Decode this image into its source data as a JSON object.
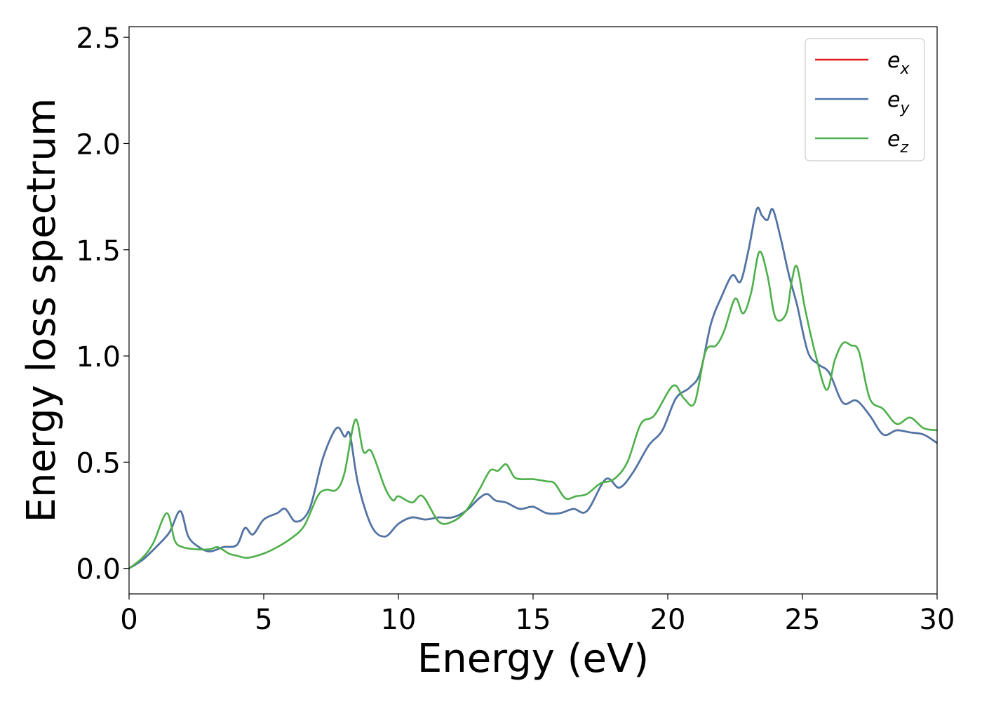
{
  "chart_data": {
    "type": "line",
    "title": "",
    "xlabel": "Energy (eV)",
    "ylabel": "Energy loss spectrum",
    "xlim": [
      0,
      30
    ],
    "ylim": [
      -0.12,
      2.55
    ],
    "xticks": [
      0,
      5,
      10,
      15,
      20,
      25,
      30
    ],
    "xtick_labels": [
      "0",
      "5",
      "10",
      "15",
      "20",
      "25",
      "30"
    ],
    "yticks": [
      0.0,
      0.5,
      1.0,
      1.5,
      2.0,
      2.5
    ],
    "ytick_labels": [
      "0.0",
      "0.5",
      "1.0",
      "1.5",
      "2.0",
      "2.5"
    ],
    "grid": false,
    "legend_position": "top-right",
    "series": [
      {
        "name": "e",
        "subscript": "x",
        "color": "#e41a1c",
        "x": [
          0,
          0.5,
          1.0,
          1.5,
          1.9,
          2.2,
          2.6,
          3.0,
          3.5,
          4.0,
          4.3,
          4.6,
          5.0,
          5.5,
          5.8,
          6.2,
          6.7,
          7.2,
          7.7,
          8.0,
          8.2,
          8.5,
          9.0,
          9.5,
          10.0,
          10.5,
          11.0,
          11.5,
          12.0,
          12.5,
          13.0,
          13.3,
          13.6,
          14.0,
          14.5,
          15.0,
          15.5,
          16.0,
          16.5,
          17.0,
          17.7,
          18.2,
          18.7,
          19.3,
          19.8,
          20.3,
          20.8,
          21.2,
          21.6,
          22.0,
          22.4,
          22.7,
          23.0,
          23.3,
          23.5,
          23.7,
          23.9,
          24.2,
          24.5,
          24.8,
          25.2,
          25.6,
          26.0,
          26.5,
          27.0,
          27.5,
          28.0,
          28.5,
          29.0,
          29.5,
          30.0
        ],
        "y": [
          0.0,
          0.04,
          0.1,
          0.17,
          0.27,
          0.15,
          0.1,
          0.08,
          0.1,
          0.11,
          0.19,
          0.16,
          0.23,
          0.26,
          0.28,
          0.22,
          0.28,
          0.52,
          0.66,
          0.62,
          0.63,
          0.4,
          0.2,
          0.15,
          0.21,
          0.24,
          0.23,
          0.24,
          0.24,
          0.27,
          0.33,
          0.35,
          0.32,
          0.31,
          0.28,
          0.29,
          0.26,
          0.26,
          0.28,
          0.27,
          0.42,
          0.38,
          0.45,
          0.58,
          0.65,
          0.8,
          0.85,
          0.92,
          1.15,
          1.28,
          1.38,
          1.35,
          1.5,
          1.69,
          1.66,
          1.64,
          1.69,
          1.55,
          1.38,
          1.24,
          1.02,
          0.96,
          0.92,
          0.78,
          0.79,
          0.72,
          0.63,
          0.65,
          0.64,
          0.63,
          0.59
        ]
      },
      {
        "name": "e",
        "subscript": "y",
        "color": "#4a77aa",
        "x": [
          0,
          0.5,
          1.0,
          1.5,
          1.9,
          2.2,
          2.6,
          3.0,
          3.5,
          4.0,
          4.3,
          4.6,
          5.0,
          5.5,
          5.8,
          6.2,
          6.7,
          7.2,
          7.7,
          8.0,
          8.2,
          8.5,
          9.0,
          9.5,
          10.0,
          10.5,
          11.0,
          11.5,
          12.0,
          12.5,
          13.0,
          13.3,
          13.6,
          14.0,
          14.5,
          15.0,
          15.5,
          16.0,
          16.5,
          17.0,
          17.7,
          18.2,
          18.7,
          19.3,
          19.8,
          20.3,
          20.8,
          21.2,
          21.6,
          22.0,
          22.4,
          22.7,
          23.0,
          23.3,
          23.5,
          23.7,
          23.9,
          24.2,
          24.5,
          24.8,
          25.2,
          25.6,
          26.0,
          26.5,
          27.0,
          27.5,
          28.0,
          28.5,
          29.0,
          29.5,
          30.0
        ],
        "y": [
          0.0,
          0.04,
          0.1,
          0.17,
          0.27,
          0.15,
          0.1,
          0.08,
          0.1,
          0.11,
          0.19,
          0.16,
          0.23,
          0.26,
          0.28,
          0.22,
          0.28,
          0.52,
          0.66,
          0.62,
          0.63,
          0.4,
          0.2,
          0.15,
          0.21,
          0.24,
          0.23,
          0.24,
          0.24,
          0.27,
          0.33,
          0.35,
          0.32,
          0.31,
          0.28,
          0.29,
          0.26,
          0.26,
          0.28,
          0.27,
          0.42,
          0.38,
          0.45,
          0.58,
          0.65,
          0.8,
          0.85,
          0.92,
          1.15,
          1.28,
          1.38,
          1.35,
          1.5,
          1.69,
          1.66,
          1.64,
          1.69,
          1.55,
          1.38,
          1.24,
          1.02,
          0.96,
          0.92,
          0.78,
          0.79,
          0.72,
          0.63,
          0.65,
          0.64,
          0.63,
          0.59
        ]
      },
      {
        "name": "e",
        "subscript": "z",
        "color": "#4daf4a",
        "x": [
          0,
          0.5,
          0.9,
          1.4,
          1.7,
          2.0,
          2.5,
          3.0,
          3.3,
          3.7,
          4.0,
          4.4,
          5.0,
          5.5,
          6.0,
          6.5,
          7.0,
          7.3,
          7.7,
          8.0,
          8.4,
          8.7,
          9.0,
          9.5,
          9.8,
          10.0,
          10.5,
          10.9,
          11.5,
          12.0,
          12.5,
          13.0,
          13.4,
          13.7,
          14.0,
          14.3,
          14.6,
          15.0,
          15.5,
          15.8,
          16.2,
          16.6,
          17.0,
          17.5,
          18.0,
          18.5,
          19.0,
          19.5,
          20.2,
          20.6,
          21.0,
          21.4,
          21.8,
          22.1,
          22.5,
          22.8,
          23.1,
          23.4,
          23.7,
          24.0,
          24.4,
          24.6,
          24.8,
          25.1,
          25.5,
          25.9,
          26.2,
          26.5,
          26.8,
          27.1,
          27.5,
          28.0,
          28.5,
          29.0,
          29.5,
          30.0
        ],
        "y": [
          0.0,
          0.05,
          0.12,
          0.26,
          0.13,
          0.1,
          0.09,
          0.09,
          0.1,
          0.07,
          0.06,
          0.05,
          0.07,
          0.1,
          0.14,
          0.2,
          0.34,
          0.37,
          0.37,
          0.45,
          0.7,
          0.55,
          0.55,
          0.38,
          0.32,
          0.34,
          0.31,
          0.34,
          0.22,
          0.22,
          0.27,
          0.37,
          0.46,
          0.46,
          0.49,
          0.43,
          0.42,
          0.42,
          0.41,
          0.4,
          0.33,
          0.34,
          0.35,
          0.4,
          0.42,
          0.5,
          0.68,
          0.72,
          0.86,
          0.8,
          0.78,
          1.02,
          1.05,
          1.12,
          1.27,
          1.2,
          1.3,
          1.49,
          1.38,
          1.18,
          1.2,
          1.35,
          1.42,
          1.22,
          1.0,
          0.84,
          0.98,
          1.06,
          1.05,
          1.02,
          0.8,
          0.75,
          0.68,
          0.71,
          0.66,
          0.65
        ]
      }
    ]
  }
}
